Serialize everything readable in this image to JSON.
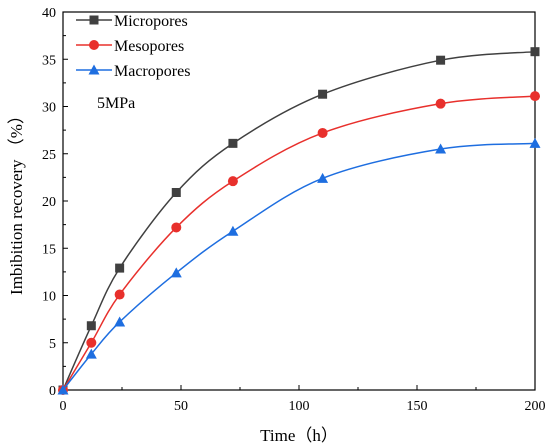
{
  "chart_data": {
    "type": "line",
    "xlabel": "Time（h）",
    "ylabel": "Imbibition recovery （%）",
    "xlim": [
      0,
      200
    ],
    "ylim": [
      0,
      40
    ],
    "xticks": [
      0,
      50,
      100,
      150,
      200
    ],
    "yticks": [
      0,
      5,
      10,
      15,
      20,
      25,
      30,
      35,
      40
    ],
    "grid": false,
    "legend_position": "top-left",
    "annotation": "5MPa",
    "x": [
      0,
      12,
      24,
      48,
      72,
      110,
      160,
      200
    ],
    "series": [
      {
        "name": "Micropores",
        "color": "#404040",
        "marker": "square",
        "values": [
          0,
          6.8,
          12.9,
          20.9,
          26.1,
          31.3,
          34.9,
          35.8
        ]
      },
      {
        "name": "Mesopores",
        "color": "#e8302c",
        "marker": "circle",
        "values": [
          0,
          5.0,
          10.1,
          17.2,
          22.1,
          27.2,
          30.3,
          31.1
        ]
      },
      {
        "name": "Macropores",
        "color": "#1e6ee0",
        "marker": "triangle",
        "values": [
          0,
          3.8,
          7.2,
          12.4,
          16.8,
          22.4,
          25.5,
          26.1
        ]
      }
    ]
  }
}
